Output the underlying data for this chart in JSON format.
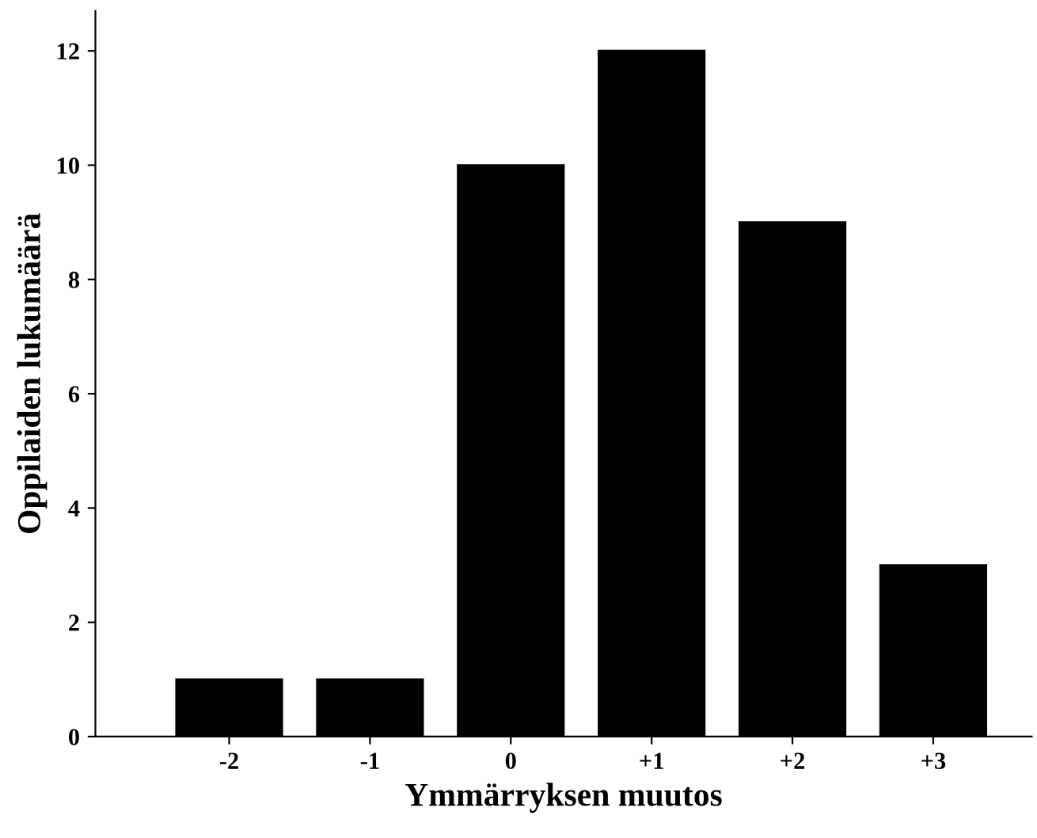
{
  "chart_data": {
    "type": "bar",
    "xlabel": "Ymmärryksen muutos",
    "ylabel": "Oppilaiden lukumäärä",
    "categories": [
      "-2",
      "-1",
      "0",
      "+1",
      "+2",
      "+3"
    ],
    "values": [
      1,
      1,
      10,
      12,
      9,
      3
    ],
    "color": "#000000",
    "ylim": [
      0,
      12.7
    ],
    "yticks": [
      0,
      2,
      4,
      6,
      8,
      10,
      12
    ],
    "grid": false
  }
}
